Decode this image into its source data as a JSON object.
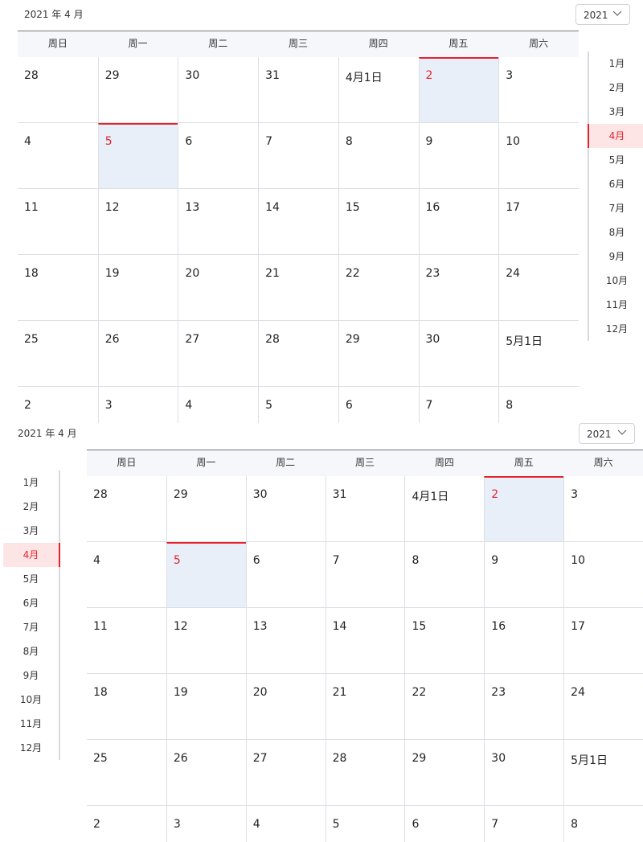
{
  "calendars": [
    {
      "title": "2021 年 4 月",
      "year": "2021",
      "weekdays": [
        "周日",
        "周一",
        "周二",
        "周三",
        "周四",
        "周五",
        "周六"
      ],
      "weeks": [
        [
          "28",
          "29",
          "30",
          "31",
          "4月1日",
          "2",
          "3"
        ],
        [
          "4",
          "5",
          "6",
          "7",
          "8",
          "9",
          "10"
        ],
        [
          "11",
          "12",
          "13",
          "14",
          "15",
          "16",
          "17"
        ],
        [
          "18",
          "19",
          "20",
          "21",
          "22",
          "23",
          "24"
        ],
        [
          "25",
          "26",
          "27",
          "28",
          "29",
          "30",
          "5月1日"
        ],
        [
          "2",
          "3",
          "4",
          "5",
          "6",
          "7",
          "8"
        ]
      ],
      "months": [
        "1月",
        "2月",
        "3月",
        "4月",
        "5月",
        "6月",
        "7月",
        "8月",
        "9月",
        "10月",
        "11月",
        "12月"
      ],
      "active_month_index": 3
    },
    {
      "title": "2021 年 4 月",
      "year": "2021",
      "weekdays": [
        "周日",
        "周一",
        "周二",
        "周三",
        "周四",
        "周五",
        "周六"
      ],
      "weeks": [
        [
          "28",
          "29",
          "30",
          "31",
          "4月1日",
          "2",
          "3"
        ],
        [
          "4",
          "5",
          "6",
          "7",
          "8",
          "9",
          "10"
        ],
        [
          "11",
          "12",
          "13",
          "14",
          "15",
          "16",
          "17"
        ],
        [
          "18",
          "19",
          "20",
          "21",
          "22",
          "23",
          "24"
        ],
        [
          "25",
          "26",
          "27",
          "28",
          "29",
          "30",
          "5月1日"
        ],
        [
          "2",
          "3",
          "4",
          "5",
          "6",
          "7",
          "8"
        ]
      ],
      "months": [
        "1月",
        "2月",
        "3月",
        "4月",
        "5月",
        "6月",
        "7月",
        "8月",
        "9月",
        "10月",
        "11月",
        "12月"
      ],
      "active_month_index": 3
    }
  ],
  "colors": {
    "accent": "#e5232f",
    "selected_cell_bg": "#e9eff8",
    "active_month_bg": "#fde5e6",
    "header_bg": "#f5f7fb"
  }
}
